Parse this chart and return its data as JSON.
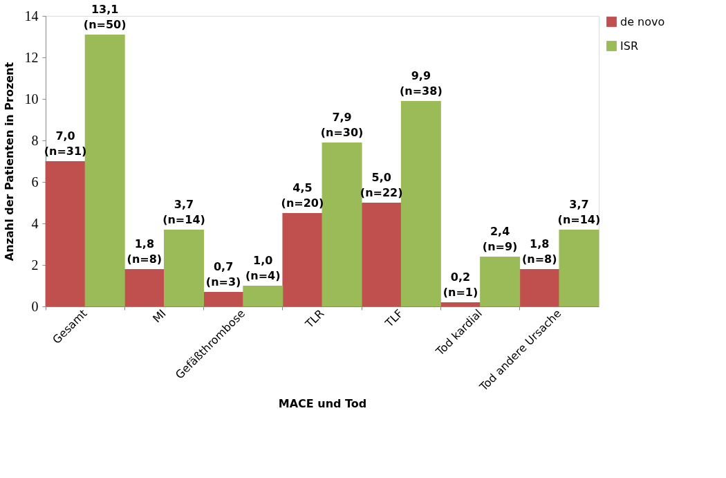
{
  "chart_data": {
    "type": "bar",
    "xlabel": "MACE und Tod",
    "ylabel": "Anzahl der Patienten in Prozent",
    "categories": [
      "Gesamt",
      "MI",
      "Gefäßthrombose",
      "TLR",
      "TLF",
      "Tod kardial",
      "Tod andere Ursache"
    ],
    "series": [
      {
        "name": "de novo",
        "color": "#c0504d",
        "values": [
          7.0,
          1.8,
          0.7,
          4.5,
          5.0,
          0.2,
          1.8
        ],
        "value_labels": [
          "7,0\n(n=31)",
          "1,8\n(n=8)",
          "0,7\n(n=3)",
          "4,5\n(n=20)",
          "5,0\n(n=22)",
          "0,2\n(n=1)",
          "1,8\n(n=8)"
        ]
      },
      {
        "name": "ISR",
        "color": "#9bbb59",
        "values": [
          13.1,
          3.7,
          1.0,
          7.9,
          9.9,
          2.4,
          3.7
        ],
        "value_labels": [
          "13,1\n(n=50)",
          "3,7\n(n=14)",
          "1,0\n(n=4)",
          "7,9\n(n=30)",
          "9,9\n(n=38)",
          "2,4\n(n=9)",
          "3,7\n(n=14)"
        ]
      }
    ],
    "ylim": [
      0,
      14
    ],
    "yticks": [
      0,
      2,
      4,
      6,
      8,
      10,
      12,
      14
    ],
    "grid": false,
    "legend": "right"
  }
}
